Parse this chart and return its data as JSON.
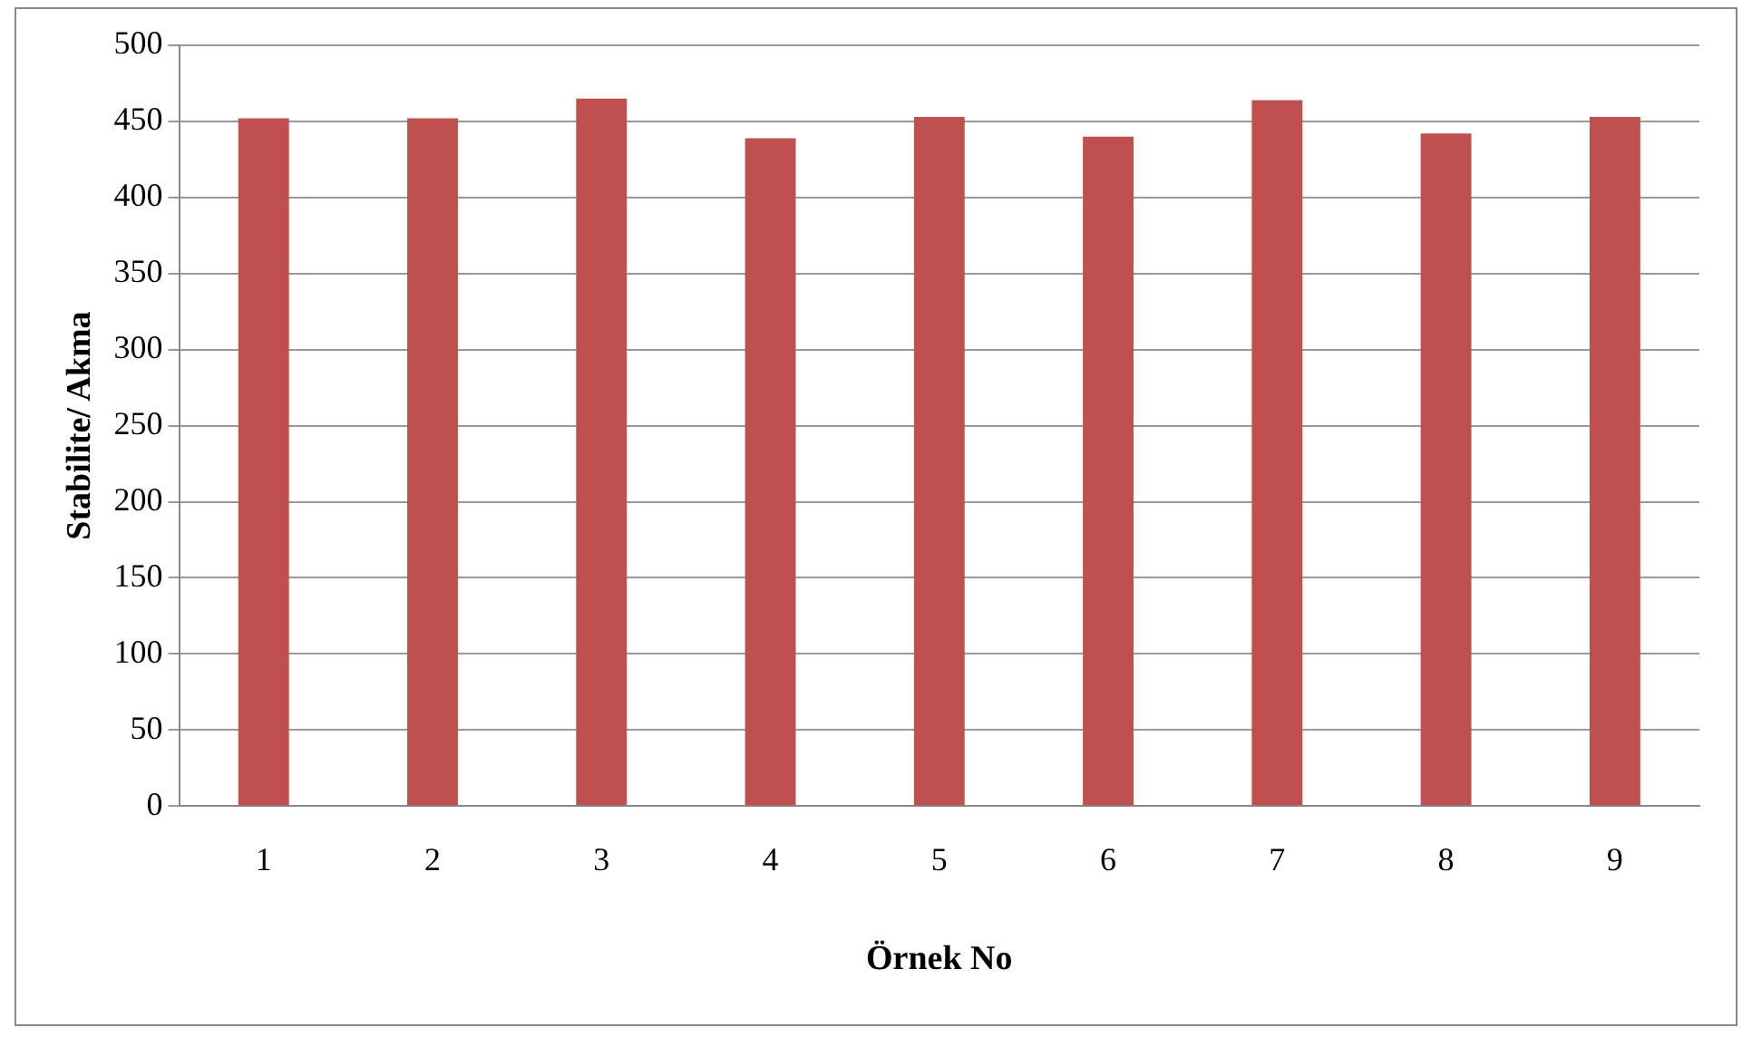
{
  "chart_data": {
    "type": "bar",
    "xlabel": "Örnek No",
    "ylabel": "Stabilite/ Akma",
    "categories": [
      "1",
      "2",
      "3",
      "4",
      "5",
      "6",
      "7",
      "8",
      "9"
    ],
    "values": [
      452,
      452,
      465,
      439,
      453,
      440,
      464,
      442,
      453
    ],
    "color": "#c0504d",
    "ylim": [
      0,
      500
    ],
    "yticks": [
      0,
      50,
      100,
      150,
      200,
      250,
      300,
      350,
      400,
      450,
      500
    ],
    "grid": "y",
    "legend": false
  }
}
